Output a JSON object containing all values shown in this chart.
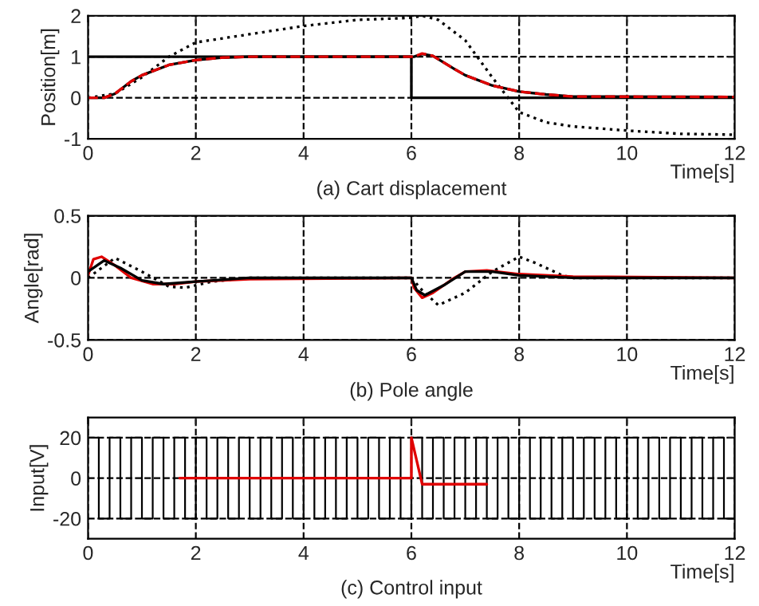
{
  "chart_data": [
    {
      "type": "line",
      "title": "(a) Cart displacement",
      "xlabel": "Time[s]",
      "ylabel": "Position[m]",
      "xlim": [
        0,
        12
      ],
      "xticks": [
        0,
        2,
        4,
        6,
        8,
        10,
        12
      ],
      "ylim": [
        -1,
        2
      ],
      "yticks": [
        -1,
        0,
        1,
        2
      ],
      "grid": true,
      "series": [
        {
          "color": "#000000",
          "line_style": "solid",
          "x": [
            0,
            6,
            6,
            12
          ],
          "values": [
            1,
            1,
            0,
            0
          ]
        },
        {
          "color": "#000000",
          "line_style": "dotted",
          "x": [
            0,
            0.5,
            1,
            1.5,
            2,
            2.5,
            3,
            4,
            5,
            6,
            6.2,
            6.5,
            7,
            7.5,
            8,
            8.5,
            9,
            10,
            11,
            12
          ],
          "values": [
            0,
            0.1,
            0.5,
            1.0,
            1.35,
            1.45,
            1.55,
            1.75,
            1.9,
            1.95,
            2.0,
            1.9,
            1.4,
            0.5,
            -0.35,
            -0.6,
            -0.7,
            -0.8,
            -0.88,
            -0.9
          ]
        },
        {
          "color": "#000000",
          "line_style": "solid",
          "x": [
            0,
            0.3,
            0.5,
            0.8,
            1,
            1.5,
            2,
            2.5,
            3,
            6,
            6.05,
            6.2,
            6.4,
            6.8,
            7,
            7.5,
            8,
            8.5,
            9,
            12
          ],
          "values": [
            0,
            0,
            0.1,
            0.4,
            0.55,
            0.8,
            0.92,
            0.98,
            1,
            1,
            1.0,
            1.07,
            1.02,
            0.7,
            0.55,
            0.3,
            0.15,
            0.08,
            0.03,
            0.02
          ]
        },
        {
          "color": "#e00000",
          "line_style": "dashed",
          "x": [
            0,
            0.3,
            0.5,
            0.8,
            1,
            1.5,
            2,
            2.5,
            3,
            6,
            6.05,
            6.2,
            6.4,
            6.8,
            7,
            7.5,
            8,
            8.5,
            9,
            12
          ],
          "values": [
            0,
            0,
            0.1,
            0.4,
            0.55,
            0.8,
            0.92,
            0.98,
            1,
            1,
            1.0,
            1.08,
            1.02,
            0.7,
            0.55,
            0.3,
            0.15,
            0.08,
            0.03,
            0.02
          ]
        }
      ]
    },
    {
      "type": "line",
      "title": "(b) Pole angle",
      "xlabel": "Time[s]",
      "ylabel": "Angle[rad]",
      "xlim": [
        0,
        12
      ],
      "xticks": [
        0,
        2,
        4,
        6,
        8,
        10,
        12
      ],
      "ylim": [
        -0.5,
        0.5
      ],
      "yticks": [
        -0.5,
        0,
        0.5
      ],
      "grid": true,
      "series": [
        {
          "color": "#000000",
          "line_style": "dotted",
          "x": [
            0,
            0.5,
            1,
            1.5,
            1.8,
            2.3,
            3,
            6,
            6.2,
            6.5,
            7,
            7.5,
            8,
            8.3,
            8.8,
            9,
            12
          ],
          "values": [
            0,
            0.16,
            0.05,
            -0.07,
            -0.08,
            -0.03,
            0,
            0,
            -0.1,
            -0.22,
            -0.12,
            0.05,
            0.17,
            0.12,
            0.02,
            0,
            0
          ]
        },
        {
          "color": "#e00000",
          "line_style": "solid",
          "x": [
            0,
            0.1,
            0.25,
            0.5,
            0.8,
            1.2,
            1.6,
            2,
            3,
            6,
            6.05,
            6.2,
            6.4,
            6.8,
            7,
            7.4,
            8,
            9,
            12
          ],
          "values": [
            0.02,
            0.15,
            0.17,
            0.1,
            0,
            -0.05,
            -0.05,
            -0.03,
            -0.01,
            0,
            -0.08,
            -0.16,
            -0.12,
            0,
            0.05,
            0.06,
            0.03,
            0.01,
            0
          ]
        },
        {
          "color": "#000000",
          "line_style": "solid",
          "x": [
            0,
            0.3,
            0.6,
            1,
            1.4,
            2,
            3,
            6,
            6.1,
            6.25,
            6.6,
            7,
            7.5,
            8,
            9,
            12
          ],
          "values": [
            0.05,
            0.14,
            0.08,
            -0.02,
            -0.05,
            -0.03,
            0,
            0,
            -0.1,
            -0.14,
            -0.06,
            0.05,
            0.05,
            0.02,
            0,
            0
          ]
        }
      ]
    },
    {
      "type": "line",
      "title": "(c) Control input",
      "xlabel": "Time[s]",
      "ylabel": "Input[V]",
      "xlim": [
        0,
        12
      ],
      "xticks": [
        0,
        2,
        4,
        6,
        8,
        10,
        12
      ],
      "ylim": [
        -30,
        30
      ],
      "yticks": [
        -20,
        0,
        20
      ],
      "grid": true,
      "series": [
        {
          "type": "step",
          "color": "#000000",
          "line_style": "solid",
          "x": [
            0,
            0.2,
            0.4,
            0.6,
            0.8,
            1,
            1.2,
            1.4,
            1.6,
            1.8,
            2,
            2.2,
            2.4,
            2.6,
            2.8,
            3,
            3.2,
            3.4,
            3.6,
            3.8,
            4,
            4.2,
            4.4,
            4.6,
            4.8,
            5,
            5.2,
            5.4,
            5.6,
            5.8,
            6,
            6.2,
            6.4,
            6.6,
            6.8,
            7,
            7.2,
            7.4,
            7.6,
            7.8,
            8,
            8.2,
            8.4,
            8.6,
            8.8,
            9,
            9.2,
            9.4,
            9.6,
            9.8,
            10,
            10.2,
            10.4,
            10.6,
            10.8,
            11,
            11.2,
            11.4,
            11.6,
            11.8,
            12
          ],
          "values": [
            20,
            -20,
            20,
            -20,
            20,
            -20,
            20,
            -20,
            20,
            -20,
            20,
            -20,
            20,
            -20,
            20,
            -20,
            20,
            -20,
            20,
            -20,
            20,
            -20,
            20,
            -20,
            20,
            -20,
            20,
            -20,
            20,
            -20,
            20,
            -20,
            20,
            -20,
            20,
            -20,
            20,
            -20,
            20,
            -20,
            20,
            -20,
            20,
            -20,
            20,
            -20,
            20,
            -20,
            20,
            -20,
            20,
            -20,
            20,
            -20,
            20,
            -20,
            20,
            -20,
            20,
            -20,
            20
          ]
        },
        {
          "color": "#e00000",
          "line_style": "solid",
          "x": [
            1.7,
            2.6,
            6,
            6,
            6.2,
            7.4
          ],
          "values": [
            0,
            0,
            0,
            20,
            -3,
            -3
          ]
        }
      ]
    }
  ]
}
